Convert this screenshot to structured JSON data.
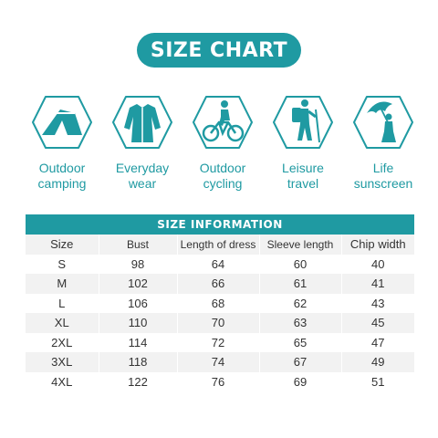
{
  "title": "SIZE CHART",
  "uses": [
    {
      "icon": "tent-icon",
      "line1": "Outdoor",
      "line2": "camping"
    },
    {
      "icon": "dress-icon",
      "line1": "Everyday",
      "line2": "wear"
    },
    {
      "icon": "cyclist-icon",
      "line1": "Outdoor",
      "line2": "cycling"
    },
    {
      "icon": "hiker-icon",
      "line1": "Leisure",
      "line2": "travel"
    },
    {
      "icon": "umbrella-icon",
      "line1": "Life",
      "line2": "sunscreen"
    }
  ],
  "table": {
    "heading": "SIZE INFORMATION",
    "columns": [
      "Size",
      "Bust",
      "Length of dress",
      "Sleeve length",
      "Chip width"
    ],
    "rows": [
      [
        "S",
        "98",
        "64",
        "60",
        "40"
      ],
      [
        "M",
        "102",
        "66",
        "61",
        "41"
      ],
      [
        "L",
        "106",
        "68",
        "62",
        "43"
      ],
      [
        "XL",
        "110",
        "70",
        "63",
        "45"
      ],
      [
        "2XL",
        "114",
        "72",
        "65",
        "47"
      ],
      [
        "3XL",
        "118",
        "74",
        "67",
        "49"
      ],
      [
        "4XL",
        "122",
        "76",
        "69",
        "51"
      ]
    ]
  },
  "colors": {
    "accent": "#1f9aa2",
    "stripe": "#f2f2f2"
  }
}
